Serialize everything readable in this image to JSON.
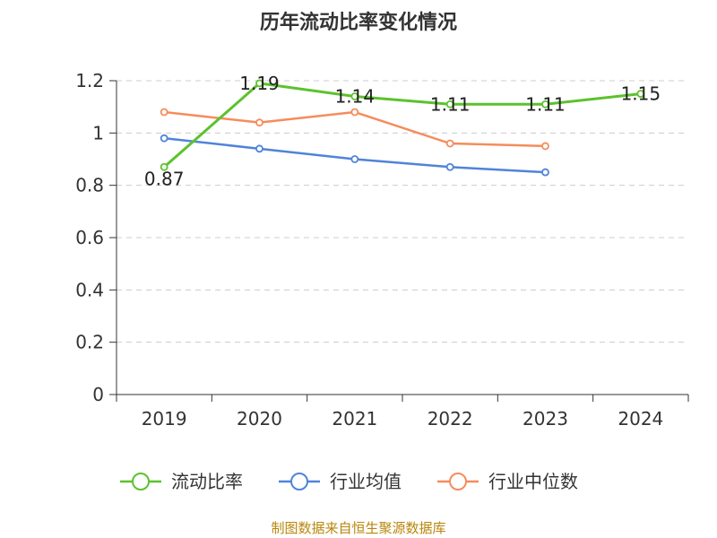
{
  "chart_data": {
    "type": "line",
    "title": "历年流动比率变化情况",
    "xlabel": "",
    "ylabel": "",
    "categories": [
      "2019",
      "2020",
      "2021",
      "2022",
      "2023",
      "2024"
    ],
    "ylim": [
      0,
      1.2
    ],
    "yticks": [
      "0",
      "0.2",
      "0.4",
      "0.6",
      "0.8",
      "1",
      "1.2"
    ],
    "grid": true,
    "legend_position": "bottom",
    "series": [
      {
        "name": "流动比率",
        "color": "#5cc22d",
        "values": [
          0.87,
          1.19,
          1.14,
          1.11,
          1.11,
          1.15
        ],
        "labels": [
          "0.87",
          "1.19",
          "1.14",
          "1.11",
          "1.11",
          "1.15"
        ]
      },
      {
        "name": "行业均值",
        "color": "#4f84d9",
        "values": [
          0.98,
          0.94,
          0.9,
          0.87,
          0.85,
          null
        ]
      },
      {
        "name": "行业中位数",
        "color": "#f58c5c",
        "values": [
          1.08,
          1.04,
          1.08,
          0.96,
          0.95,
          null
        ]
      }
    ],
    "source": "制图数据来自恒生聚源数据库"
  }
}
